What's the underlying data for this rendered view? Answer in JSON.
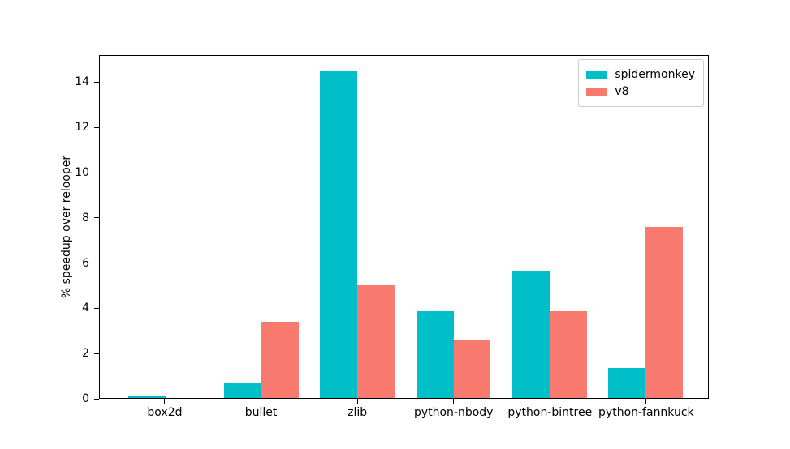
{
  "chart_data": {
    "type": "bar",
    "title": "",
    "xlabel": "",
    "ylabel": "% speedup over relooper",
    "categories": [
      "box2d",
      "bullet",
      "zlib",
      "python-nbody",
      "python-bintree",
      "python-fannkuck"
    ],
    "series": [
      {
        "name": "spidermonkey",
        "color": "#00bfc8",
        "values": [
          0.1,
          0.7,
          14.5,
          3.85,
          5.65,
          1.35
        ]
      },
      {
        "name": "v8",
        "color": "#f87a6f",
        "values": [
          0,
          3.4,
          5.0,
          2.55,
          3.85,
          7.6
        ]
      }
    ],
    "ylim": [
      0,
      15.2
    ],
    "yticks": [
      0,
      2,
      4,
      6,
      8,
      10,
      12,
      14
    ],
    "legend_position": "upper right",
    "grid": false,
    "background_color": "#ffffff",
    "axis_color": "#000000"
  }
}
